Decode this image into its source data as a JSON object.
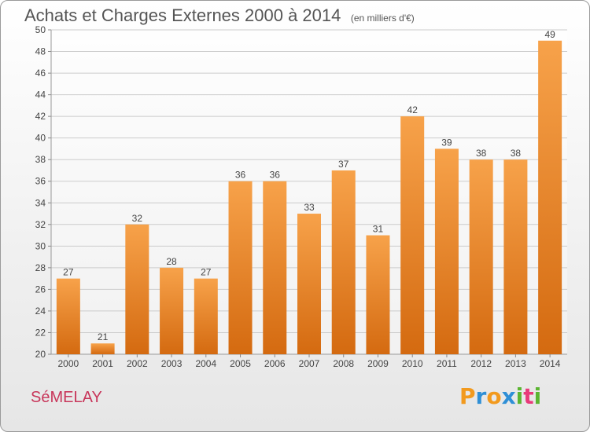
{
  "title": "Achats et Charges Externes 2000 à 2014",
  "subtitle": "(en milliers d'€)",
  "commune": "SéMELAY",
  "brand": {
    "letters": [
      "P",
      "r",
      "o",
      "x",
      "i",
      "t",
      "i"
    ],
    "colors": [
      "#f29a1e",
      "#2f8fd6",
      "#f29a1e",
      "#2f8fd6",
      "#5bb531",
      "#e83a7a",
      "#5bb531"
    ]
  },
  "colors": {
    "bar_top": "#f7a24a",
    "bar_bottom": "#d46a10",
    "grid": "#cccccc",
    "axis_text": "#444444"
  },
  "chart_data": {
    "type": "bar",
    "categories": [
      "2000",
      "2001",
      "2002",
      "2003",
      "2004",
      "2005",
      "2006",
      "2007",
      "2008",
      "2009",
      "2010",
      "2011",
      "2012",
      "2013",
      "2014"
    ],
    "values": [
      27,
      21,
      32,
      28,
      27,
      36,
      36,
      33,
      37,
      31,
      42,
      39,
      38,
      38,
      49
    ],
    "ylim": [
      20,
      50
    ],
    "yticks": [
      20,
      22,
      24,
      26,
      28,
      30,
      32,
      34,
      36,
      38,
      40,
      42,
      44,
      46,
      48,
      50
    ],
    "grid": true,
    "legend": "none"
  }
}
